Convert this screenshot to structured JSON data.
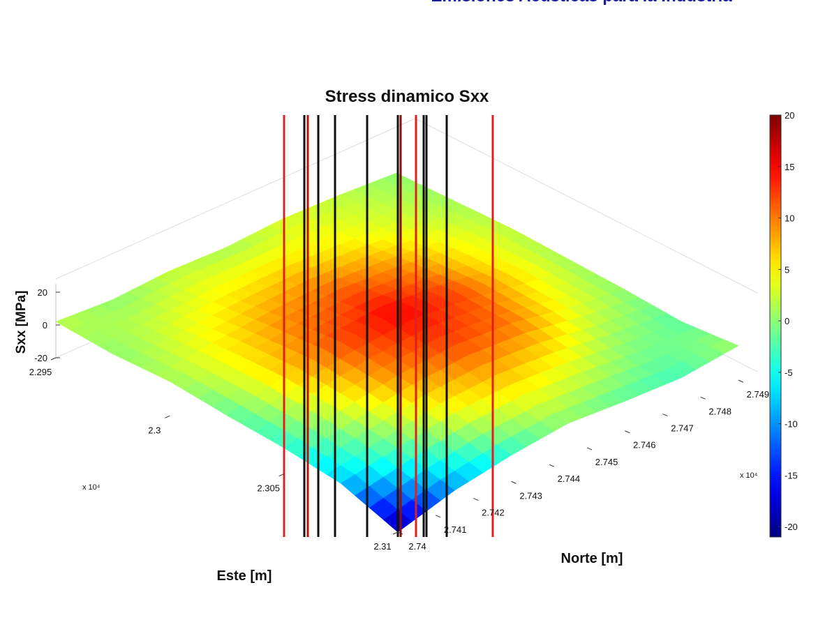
{
  "header": {
    "title": "Emisiones Acusticas para la Industria"
  },
  "chart_data": {
    "type": "surface",
    "title": "Stress dinamico Sxx",
    "x_label": "Este [m]",
    "y_label": "Norte [m]",
    "z_label": "Sxx [MPa]",
    "x_multiplier": "x 10⁴",
    "y_multiplier": "x 10⁴",
    "x": [
      2.295,
      2.2975,
      2.3,
      2.3025,
      2.305,
      2.3075,
      2.31
    ],
    "y": [
      2.74,
      2.7415,
      2.743,
      2.7445,
      2.746,
      2.7475,
      2.749
    ],
    "z": [
      [
        2,
        0,
        2,
        1,
        3,
        2,
        0
      ],
      [
        0,
        3,
        5,
        6,
        5,
        3,
        1
      ],
      [
        1,
        5,
        9,
        11,
        9,
        5,
        2
      ],
      [
        -2,
        6,
        12,
        15,
        12,
        6,
        1
      ],
      [
        -4,
        3,
        9,
        12,
        10,
        4,
        0
      ],
      [
        -8,
        -2,
        4,
        6,
        4,
        0,
        -2
      ],
      [
        -20,
        -10,
        -4,
        0,
        -2,
        -3,
        1
      ]
    ],
    "xlim": [
      2.295,
      2.31
    ],
    "ylim": [
      2.74,
      2.7495
    ],
    "zlim": [
      -20,
      25
    ],
    "xticks": [
      2.295,
      2.3,
      2.305,
      2.31
    ],
    "yticks": [
      2.74,
      2.741,
      2.742,
      2.743,
      2.744,
      2.745,
      2.746,
      2.747,
      2.748,
      2.749
    ],
    "zticks": [
      -20,
      0,
      20
    ],
    "colormap": "jet",
    "clim": [
      -21,
      20
    ],
    "colorbar_ticks": [
      -20,
      -15,
      -10,
      -5,
      0,
      5,
      10,
      15,
      20
    ]
  }
}
